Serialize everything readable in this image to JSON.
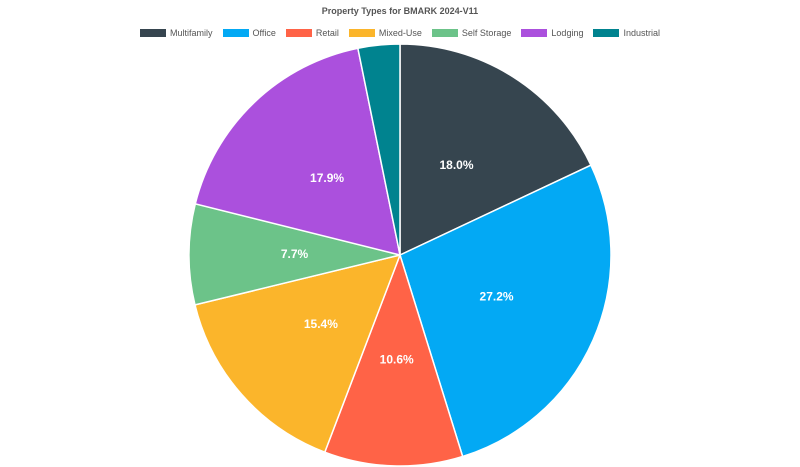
{
  "chart_data": {
    "type": "pie",
    "title": "Property Types for BMARK 2024-V11",
    "legend_position": "top",
    "series": [
      {
        "name": "Multifamily",
        "value": 18.0,
        "label": "18.0%",
        "color": "#36454f"
      },
      {
        "name": "Office",
        "value": 27.2,
        "label": "27.2%",
        "color": "#03a9f4"
      },
      {
        "name": "Retail",
        "value": 10.6,
        "label": "10.6%",
        "color": "#ff6347"
      },
      {
        "name": "Mixed-Use",
        "value": 15.4,
        "label": "15.4%",
        "color": "#fbb52b"
      },
      {
        "name": "Self Storage",
        "value": 7.7,
        "label": "7.7%",
        "color": "#6cc389"
      },
      {
        "name": "Lodging",
        "value": 17.9,
        "label": "17.9%",
        "color": "#ab50dd"
      },
      {
        "name": "Industrial",
        "value": 3.2,
        "label": "",
        "color": "#00838f"
      }
    ]
  }
}
